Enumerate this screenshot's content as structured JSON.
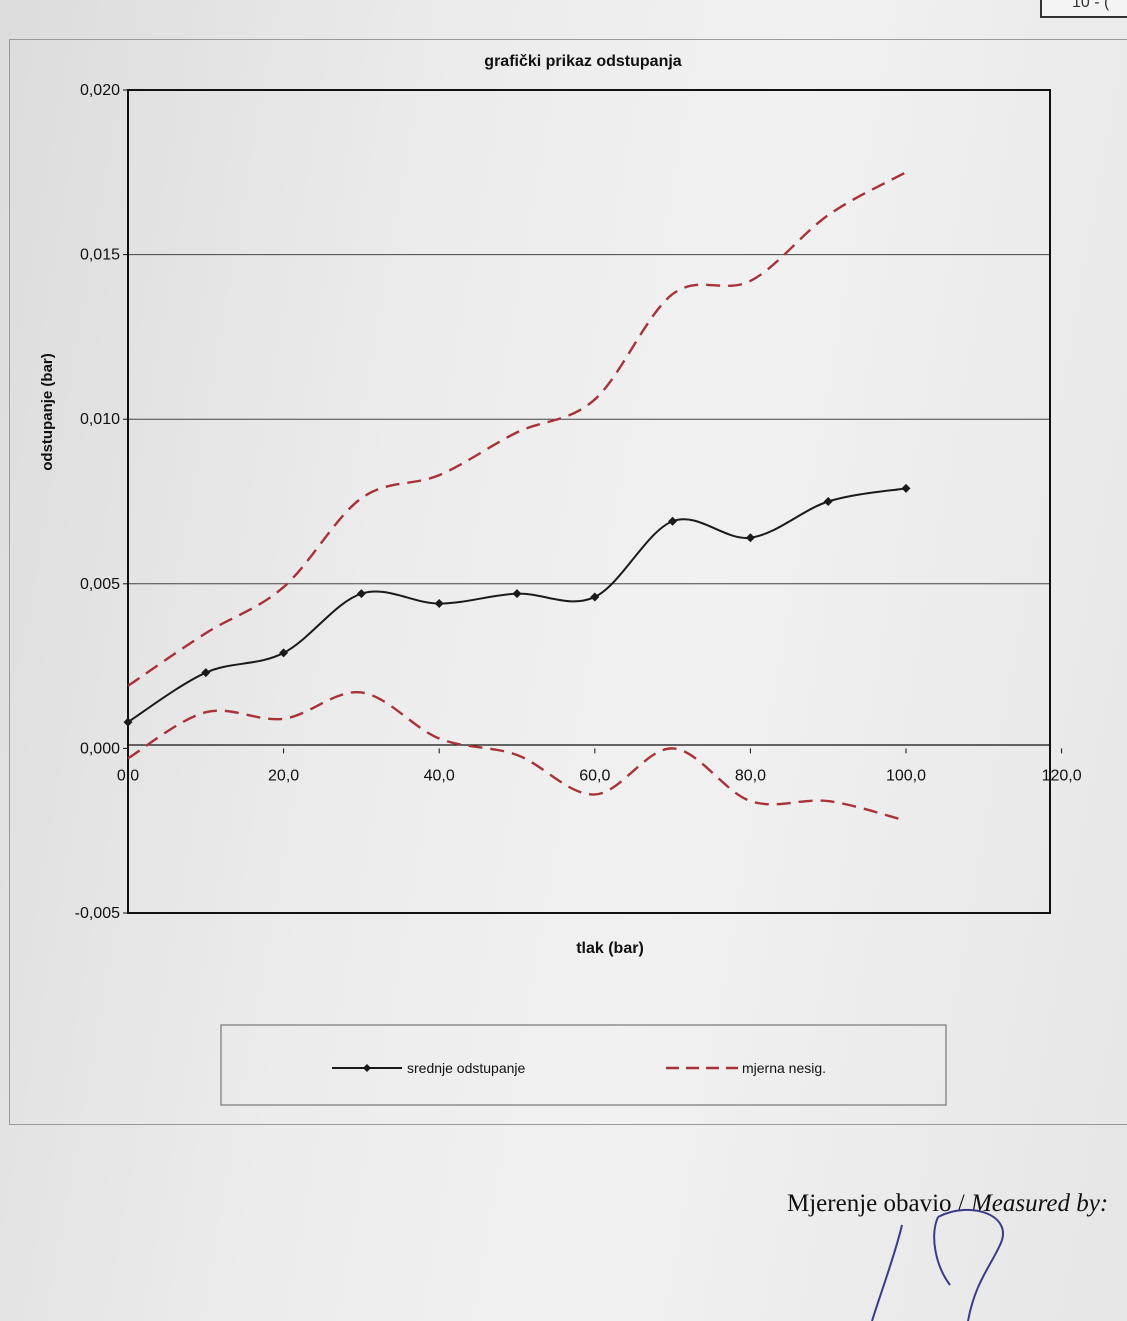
{
  "corner_label": "10 - (",
  "chart_data": {
    "type": "line",
    "title": "grafički prikaz odstupanja",
    "xlabel": "tlak (bar)",
    "ylabel": "odstupanje (bar)",
    "xlim": [
      0,
      120
    ],
    "ylim": [
      -0.005,
      0.02
    ],
    "x_ticks": [
      0,
      20,
      40,
      60,
      80,
      100,
      120
    ],
    "x_tick_labels": [
      "0,0",
      "20,0",
      "40,0",
      "60,0",
      "80,0",
      "100,0",
      "120,0"
    ],
    "y_ticks": [
      0.02,
      0.015,
      0.01,
      0.005,
      0,
      -0.005
    ],
    "y_tick_labels": [
      "0,020",
      "0,015",
      "0,010",
      "0,005",
      "0,000",
      "-0,005"
    ],
    "grid": "horizontal",
    "legend_position": "bottom",
    "series": [
      {
        "name": "srednje odstupanje",
        "color": "#1a1a1a",
        "style": "solid-markers",
        "x": [
          0,
          10,
          20,
          30,
          40,
          50,
          60,
          70,
          80,
          90,
          100
        ],
        "y": [
          0.0008,
          0.0023,
          0.0029,
          0.0047,
          0.0044,
          0.0047,
          0.0046,
          0.0069,
          0.0064,
          0.0075,
          0.0079
        ]
      },
      {
        "name": "mjerna nesig.",
        "color": "#a83238",
        "style": "dashed",
        "x": [
          0,
          10,
          20,
          30,
          40,
          50,
          60,
          70,
          80,
          90,
          100
        ],
        "y": [
          0.0019,
          0.0035,
          0.0049,
          0.0076,
          0.0083,
          0.0096,
          0.0106,
          0.0138,
          0.0142,
          0.0162,
          0.0175
        ]
      },
      {
        "name": "mjerna nesig.",
        "color": "#a83238",
        "style": "dashed",
        "x": [
          0,
          10,
          20,
          30,
          40,
          50,
          60,
          70,
          80,
          90,
          100
        ],
        "y": [
          -0.0003,
          0.0011,
          0.0009,
          0.0017,
          0.0003,
          -0.0002,
          -0.0014,
          0.0,
          -0.0016,
          -0.0016,
          -0.0022
        ]
      }
    ],
    "legend": [
      {
        "label": "srednje odstupanje",
        "style": "solid-markers"
      },
      {
        "label": "mjerna nesig.",
        "style": "dashed"
      }
    ]
  },
  "footer": {
    "measured_label_hr": "Mjerenje obavio / ",
    "measured_label_en": "Measured by:"
  }
}
